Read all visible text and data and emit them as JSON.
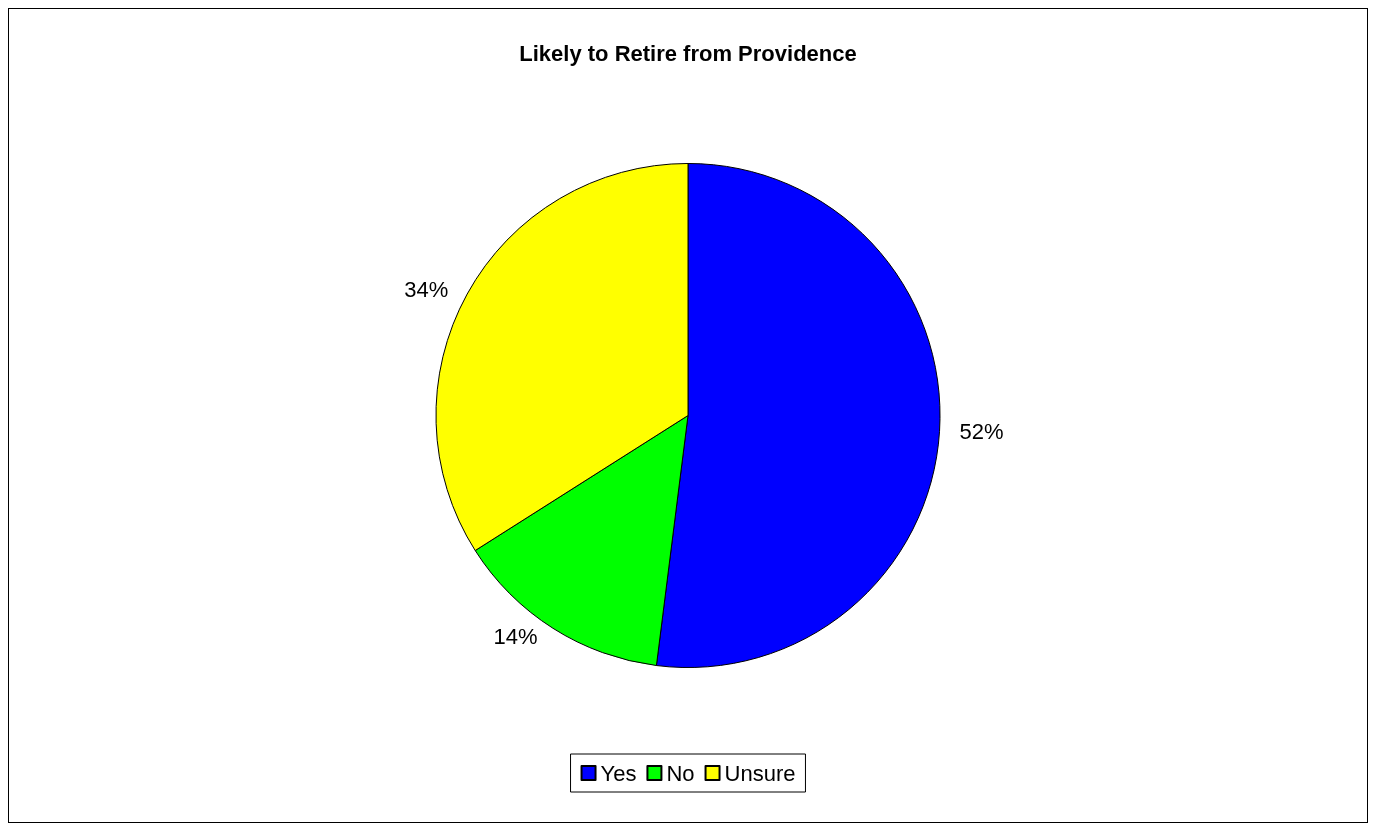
{
  "chart_data": {
    "type": "pie",
    "title": "Likely to Retire from Providence",
    "categories": [
      "Yes",
      "No",
      "Unsure"
    ],
    "values": [
      52,
      14,
      34
    ],
    "colors": [
      "#0000ff",
      "#00ff00",
      "#ffff00"
    ],
    "value_labels": [
      "52%",
      "14%",
      "34%"
    ],
    "legend": "bottom"
  }
}
